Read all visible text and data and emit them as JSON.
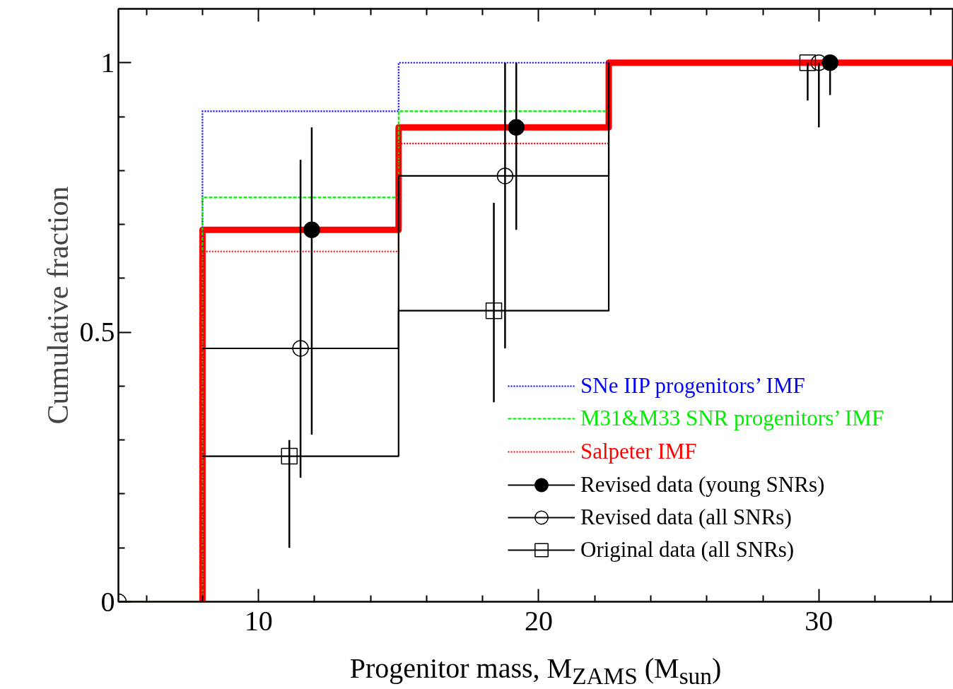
{
  "chart_data": {
    "type": "line",
    "xlabel": "Progenitor mass, M$_{ZAMS}$ (M$_{sun}$)",
    "ylabel": "Cumulative fraction",
    "xlim": [
      5,
      34.8
    ],
    "ylim": [
      0,
      1.1
    ],
    "xticks": [
      {
        "value": 6,
        "label": null
      },
      {
        "value": 8,
        "label": null
      },
      10,
      {
        "value": 12,
        "label": null
      },
      {
        "value": 14,
        "label": null
      },
      {
        "value": 16,
        "label": null
      },
      {
        "value": 18,
        "label": null
      },
      20,
      {
        "value": 22,
        "label": null
      },
      {
        "value": 24,
        "label": null
      },
      {
        "value": 26,
        "label": null
      },
      {
        "value": 28,
        "label": null
      },
      30,
      {
        "value": 32,
        "label": null
      },
      {
        "value": 34,
        "label": null
      }
    ],
    "yticks": [
      0,
      {
        "value": 0.1,
        "label": null
      },
      {
        "value": 0.2,
        "label": null
      },
      {
        "value": 0.3,
        "label": null
      },
      {
        "value": 0.4,
        "label": null
      },
      0.5,
      {
        "value": 0.6,
        "label": null
      },
      {
        "value": 0.7,
        "label": null
      },
      {
        "value": 0.8,
        "label": null
      },
      {
        "value": 0.9,
        "label": null
      },
      1
    ],
    "grid": false,
    "legend": "bottom right",
    "series": [
      {
        "type": "step",
        "color": "#ff0000",
        "line_style": "solid",
        "x": [
          8,
          8,
          15,
          22.5,
          34.8
        ],
        "values": [
          0,
          0.69,
          0.88,
          1.0,
          1.0
        ]
      },
      {
        "name": "SNe IIP progenitors’ IMF",
        "color": "#0000ff",
        "line_style": "dotted",
        "x": [
          5,
          8,
          8,
          15,
          15,
          22.5
        ],
        "values": [
          0,
          0,
          0.91,
          0.91,
          1.0,
          1.0
        ]
      },
      {
        "name": "M31&M33 SNR progenitors’ IMF",
        "color": "#00ee00",
        "line_style": "dashed",
        "x": [
          5,
          8,
          8,
          15,
          15,
          22.5
        ],
        "values": [
          0,
          0,
          0.75,
          0.75,
          0.91,
          0.91
        ]
      },
      {
        "name": "Salpeter IMF",
        "color": "#ff0000",
        "line_style": "dotted",
        "x": [
          5,
          8,
          8,
          15,
          15,
          22.5
        ],
        "values": [
          0,
          0,
          0.65,
          0.65,
          0.85,
          0.85
        ]
      },
      {
        "color": "#000000",
        "line_style": "solid",
        "x": [
          8,
          15,
          15,
          22.5,
          22.5
        ],
        "values": [
          0.47,
          0.47,
          0.79,
          0.79,
          1.0
        ]
      },
      {
        "color": "#000000",
        "line_style": "solid",
        "x": [
          8,
          15,
          15,
          22.5,
          22.5
        ],
        "values": [
          0.27,
          0.27,
          0.54,
          0.54,
          1.0
        ]
      },
      {
        "name": "Revised data (young SNRs)",
        "type": "scatter",
        "color": "#000000",
        "marker": "circle",
        "x": [
          11.9,
          19.2,
          30.4
        ],
        "values": [
          0.69,
          0.88,
          1.0
        ],
        "errors": [
          [
            0.31,
            0.88
          ],
          [
            0.69,
            1.0
          ],
          [
            0.94,
            1.0
          ]
        ]
      },
      {
        "name": "Revised data (all SNRs)",
        "type": "scatter",
        "color": "#000000",
        "marker": "circle_open",
        "x": [
          5,
          11.5,
          18.8,
          30.0
        ],
        "values": [
          0,
          0.47,
          0.79,
          1.0
        ],
        "errors": [
          null,
          [
            0.23,
            0.82
          ],
          [
            0.47,
            1.0
          ],
          [
            0.88,
            1.0
          ]
        ]
      },
      {
        "name": "Original data (all SNRs)",
        "type": "scatter",
        "color": "#000000",
        "marker": "square_open",
        "x": [
          11.1,
          18.4,
          29.6
        ],
        "values": [
          0.27,
          0.54,
          1.0
        ],
        "errors": [
          [
            0.1,
            0.3
          ],
          [
            0.37,
            0.74
          ],
          [
            0.93,
            1.0
          ]
        ]
      }
    ]
  }
}
